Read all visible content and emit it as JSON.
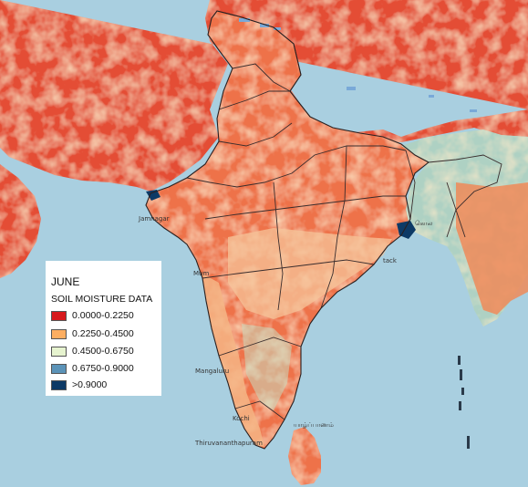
{
  "legend": {
    "title": "JUNE",
    "subtitle": "SOIL MOISTURE DATA",
    "items": [
      {
        "label": "0.0000-0.2250",
        "color": "#d7191c"
      },
      {
        "label": "0.2250-0.4500",
        "color": "#fdae61"
      },
      {
        "label": "0.4500-0.6750",
        "color": "#e6f3cf"
      },
      {
        "label": "0.6750-0.9000",
        "color": "#5b93b8"
      },
      {
        "label": ">0.9000",
        "color": "#0d3a66"
      }
    ]
  },
  "city_labels": [
    {
      "id": "jamnagar",
      "text": "Jamnagar"
    },
    {
      "id": "mumbai",
      "text": "Mum"
    },
    {
      "id": "mangaluru",
      "text": "Mangaluru"
    },
    {
      "id": "kochi",
      "text": "Kochi"
    },
    {
      "id": "thiruvananthapuram",
      "text": "Thiruvananthapuram"
    },
    {
      "id": "jaffna",
      "text": "யாழ்ப்பாணம்"
    },
    {
      "id": "kolkata",
      "text": "கொல"
    },
    {
      "id": "cuttack",
      "text": "tack"
    }
  ],
  "colors": {
    "sea": "#a9cfe0",
    "land_dry": "#e8513a",
    "land_medium": "#f08a58",
    "land_moist": "#b8d8c8",
    "water_body": "#79a9d8",
    "border": "#3a2d2d"
  }
}
